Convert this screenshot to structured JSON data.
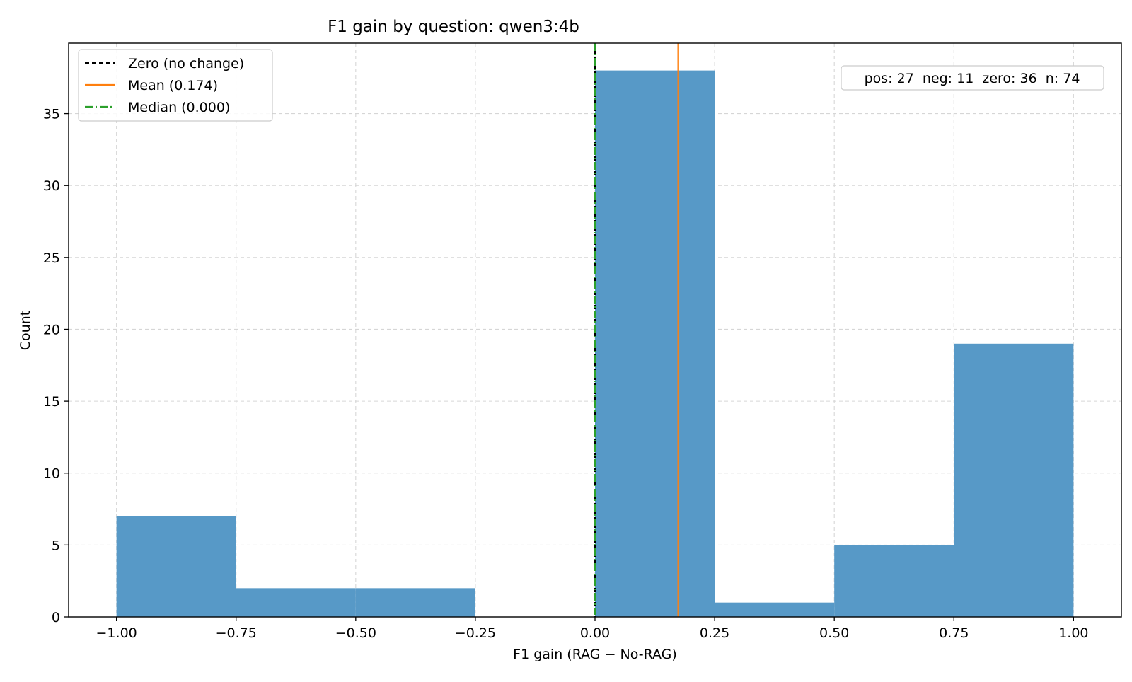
{
  "chart_data": {
    "type": "bar",
    "title": "F1 gain by question: qwen3:4b",
    "xlabel": "F1 gain (RAG − No-RAG)",
    "ylabel": "Count",
    "xlim": [
      -1.1,
      1.1
    ],
    "ylim": [
      0,
      39.9
    ],
    "grid": true,
    "bins": [
      {
        "x0": -1.0,
        "x1": -0.75,
        "count": 7
      },
      {
        "x0": -0.75,
        "x1": -0.5,
        "count": 2
      },
      {
        "x0": -0.5,
        "x1": -0.25,
        "count": 2
      },
      {
        "x0": -0.25,
        "x1": 0.0,
        "count": 0
      },
      {
        "x0": 0.0,
        "x1": 0.25,
        "count": 38
      },
      {
        "x0": 0.25,
        "x1": 0.5,
        "count": 1
      },
      {
        "x0": 0.5,
        "x1": 0.75,
        "count": 5
      },
      {
        "x0": 0.75,
        "x1": 1.0,
        "count": 19
      }
    ],
    "bar_color": "#5799c7",
    "x_ticks": [
      -1.0,
      -0.75,
      -0.5,
      -0.25,
      0.0,
      0.25,
      0.5,
      0.75,
      1.0
    ],
    "x_tick_labels": [
      "−1.00",
      "−0.75",
      "−0.50",
      "−0.25",
      "0.00",
      "0.25",
      "0.50",
      "0.75",
      "1.00"
    ],
    "y_ticks": [
      0,
      5,
      10,
      15,
      20,
      25,
      30,
      35
    ],
    "y_tick_labels": [
      "0",
      "5",
      "10",
      "15",
      "20",
      "25",
      "30",
      "35"
    ],
    "reference_lines": [
      {
        "name": "zero",
        "label": "Zero (no change)",
        "x": 0.0,
        "color": "#000000",
        "style": "dashed"
      },
      {
        "name": "mean",
        "label": "Mean (0.174)",
        "x": 0.174,
        "color": "#ff7f0e",
        "style": "solid"
      },
      {
        "name": "median",
        "label": "Median (0.000)",
        "x": 0.0,
        "color": "#2ca02c",
        "style": "dashdot"
      }
    ],
    "legend_position": "top-left",
    "stats_box": {
      "text": "pos: 27  neg: 11  zero: 36  n: 74",
      "position": "top-right"
    }
  }
}
